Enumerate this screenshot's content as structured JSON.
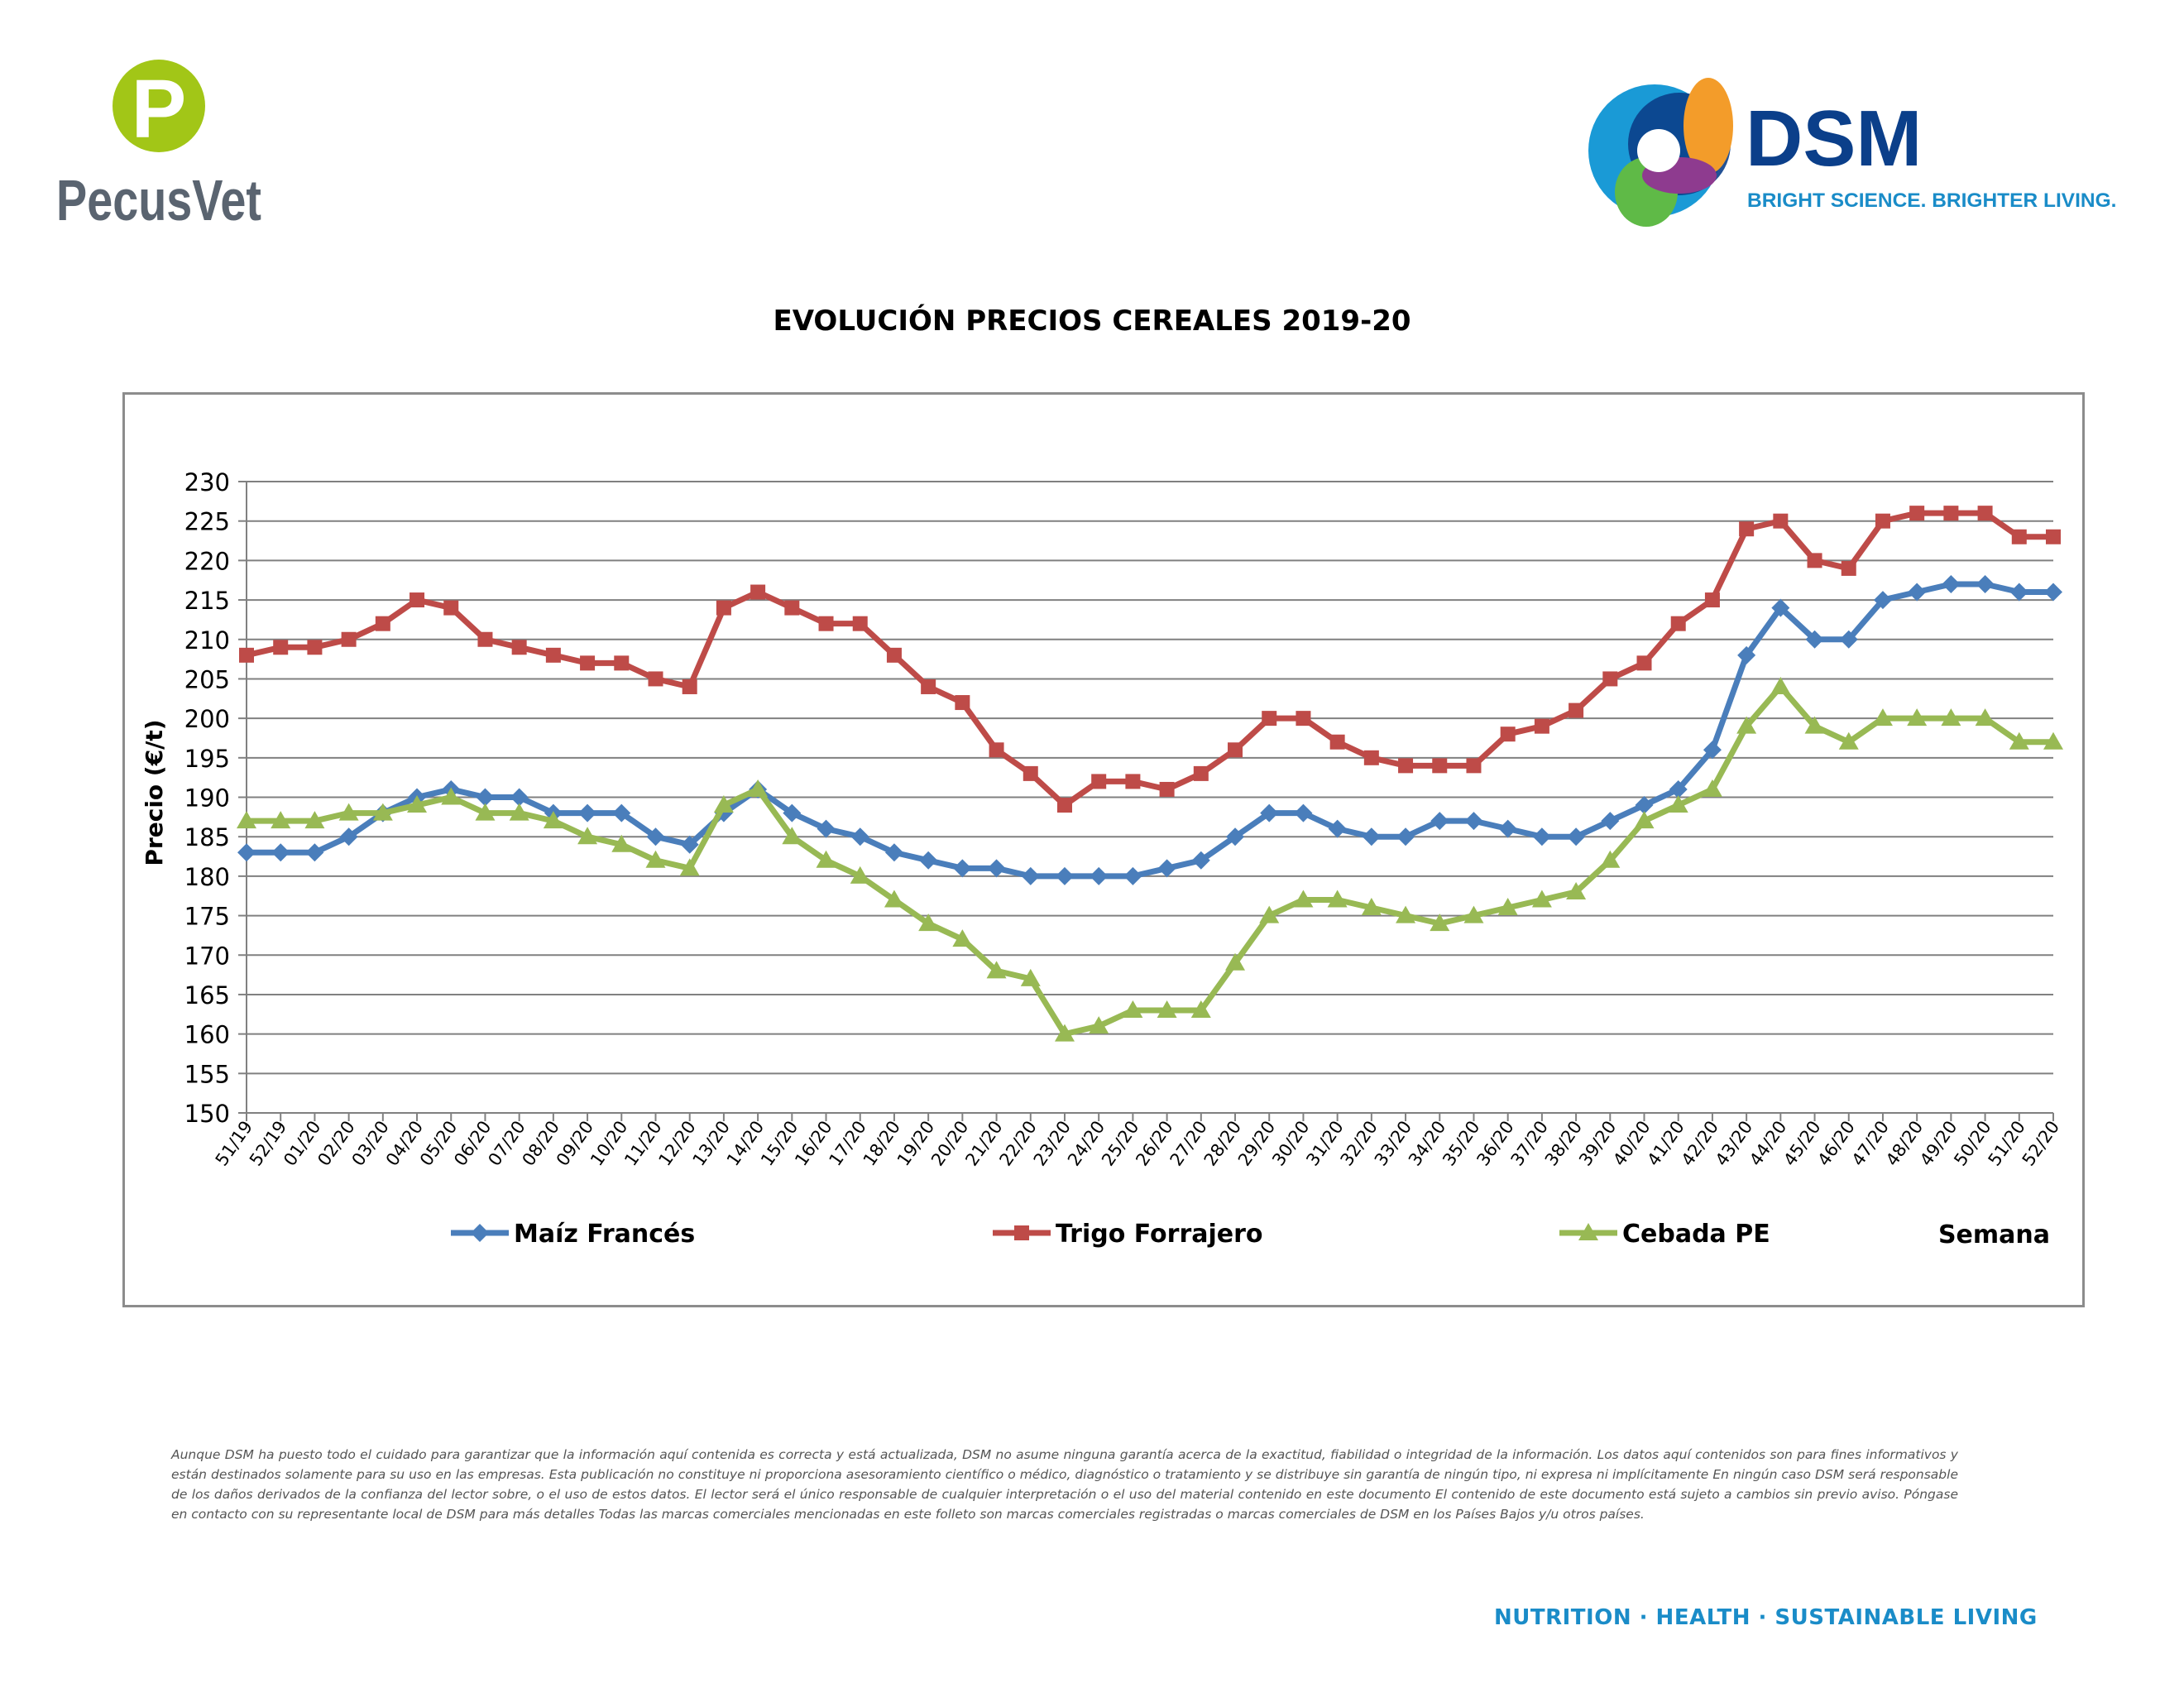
{
  "brand": {
    "pecusvet": {
      "name": "PecusVet",
      "letter": "P",
      "color": "#5a6470",
      "accent": "#a2c617"
    },
    "dsm": {
      "name": "DSM",
      "tagline": "BRIGHT SCIENCE. BRIGHTER LIVING.",
      "color": "#0b3f8a",
      "tagline_color": "#1a8cc8"
    }
  },
  "footer": {
    "disclaimer": "Aunque DSM ha puesto todo el cuidado para garantizar que la información aquí contenida es correcta y está actualizada, DSM no asume ninguna garantía acerca de la exactitud, fiabilidad o integridad de la información. Los datos aquí contenidos son para fines informativos y están destinados solamente para su uso en las empresas. Esta publicación no constituye ni proporciona asesoramiento científico o médico, diagnóstico o tratamiento y se distribuye sin garantía de ningún tipo, ni expresa ni implícitamente En ningún caso DSM será responsable de los daños derivados de la confianza del lector sobre, o el uso de estos datos. El lector será el único responsable de cualquier interpretación o el uso del material contenido en este documento El contenido de este documento está sujeto a cambios sin previo aviso. Póngase en contacto con su representante local de DSM para más detalles Todas las marcas comerciales mencionadas en este folleto son marcas comerciales registradas o marcas comerciales de DSM en los Países Bajos y/u otros países.",
    "tagline": "NUTRITION · HEALTH · SUSTAINABLE LIVING"
  },
  "chart_data": {
    "type": "line",
    "title": "EVOLUCIÓN PRECIOS CEREALES 2019-20",
    "xlabel": "Semana",
    "ylabel": "Precio (€/t)",
    "ylim": [
      150,
      230
    ],
    "ytick_step": 5,
    "grid": true,
    "legend_position": "bottom",
    "categories": [
      "51/19",
      "52/19",
      "01/20",
      "02/20",
      "03/20",
      "04/20",
      "05/20",
      "06/20",
      "07/20",
      "08/20",
      "09/20",
      "10/20",
      "11/20",
      "12/20",
      "13/20",
      "14/20",
      "15/20",
      "16/20",
      "17/20",
      "18/20",
      "19/20",
      "20/20",
      "21/20",
      "22/20",
      "23/20",
      "24/20",
      "25/20",
      "26/20",
      "27/20",
      "28/20",
      "29/20",
      "30/20",
      "31/20",
      "32/20",
      "33/20",
      "34/20",
      "35/20",
      "36/20",
      "37/20",
      "38/20",
      "39/20",
      "40/20",
      "41/20",
      "42/20",
      "43/20",
      "44/20",
      "45/20",
      "46/20",
      "47/20",
      "48/20",
      "49/20",
      "50/20",
      "51/20",
      "52/20"
    ],
    "series": [
      {
        "name": "Maíz Francés",
        "color": "#4a7ebb",
        "marker": "diamond",
        "values": [
          183,
          183,
          183,
          185,
          188,
          190,
          191,
          190,
          190,
          188,
          188,
          188,
          185,
          184,
          188,
          191,
          188,
          186,
          185,
          183,
          182,
          181,
          181,
          180,
          180,
          180,
          180,
          181,
          182,
          185,
          188,
          188,
          186,
          185,
          185,
          187,
          187,
          186,
          185,
          185,
          187,
          189,
          191,
          196,
          208,
          214,
          210,
          210,
          215,
          216,
          217,
          217,
          216,
          216
        ]
      },
      {
        "name": "Trigo Forrajero",
        "color": "#be4b48",
        "marker": "square",
        "values": [
          208,
          209,
          209,
          210,
          212,
          215,
          214,
          210,
          209,
          208,
          207,
          207,
          205,
          204,
          214,
          216,
          214,
          212,
          212,
          208,
          204,
          202,
          196,
          193,
          189,
          192,
          192,
          191,
          193,
          196,
          200,
          200,
          197,
          195,
          194,
          194,
          194,
          198,
          199,
          201,
          205,
          207,
          212,
          215,
          224,
          225,
          220,
          219,
          225,
          226,
          226,
          226,
          223,
          223
        ]
      },
      {
        "name": "Cebada PE",
        "color": "#98b954",
        "marker": "triangle",
        "values": [
          187,
          187,
          187,
          188,
          188,
          189,
          190,
          188,
          188,
          187,
          185,
          184,
          182,
          181,
          189,
          191,
          185,
          182,
          180,
          177,
          174,
          172,
          168,
          167,
          160,
          161,
          163,
          163,
          163,
          169,
          175,
          177,
          177,
          176,
          175,
          174,
          175,
          176,
          177,
          178,
          182,
          187,
          189,
          191,
          199,
          204,
          199,
          197,
          200,
          200,
          200,
          200,
          197,
          197
        ]
      }
    ]
  }
}
